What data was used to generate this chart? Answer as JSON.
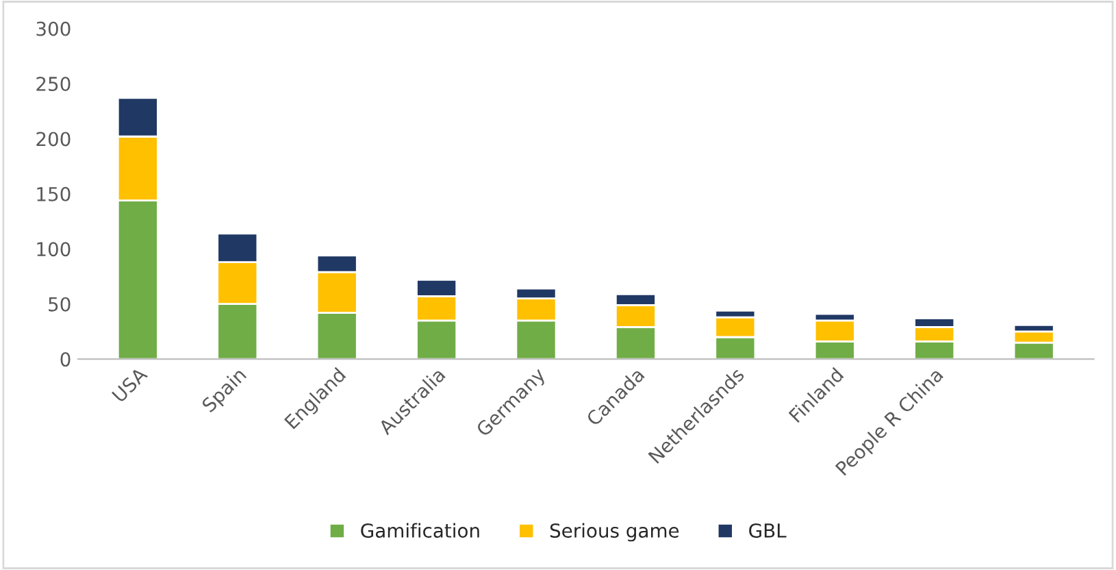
{
  "chart_data": {
    "type": "bar",
    "stacked": true,
    "categories": [
      "USA",
      "Spain",
      "England",
      "Australia",
      "Germany",
      "Canada",
      "Netherlasnds",
      "Finland",
      "People R China",
      null
    ],
    "series": [
      {
        "name": "Gamification",
        "color": "#70ad47",
        "values": [
          144,
          50,
          42,
          35,
          35,
          29,
          20,
          16,
          16,
          15
        ]
      },
      {
        "name": "Serious game",
        "color": "#ffc000",
        "values": [
          58,
          38,
          37,
          22,
          20,
          20,
          18,
          19,
          13,
          10
        ]
      },
      {
        "name": "GBL",
        "color": "#203864",
        "values": [
          35,
          26,
          15,
          15,
          9,
          10,
          6,
          6,
          8,
          6
        ]
      }
    ],
    "ylim": [
      0,
      300
    ],
    "yticks": [
      0,
      50,
      100,
      150,
      200,
      250,
      300
    ],
    "grid": false,
    "legend": "bottom"
  }
}
